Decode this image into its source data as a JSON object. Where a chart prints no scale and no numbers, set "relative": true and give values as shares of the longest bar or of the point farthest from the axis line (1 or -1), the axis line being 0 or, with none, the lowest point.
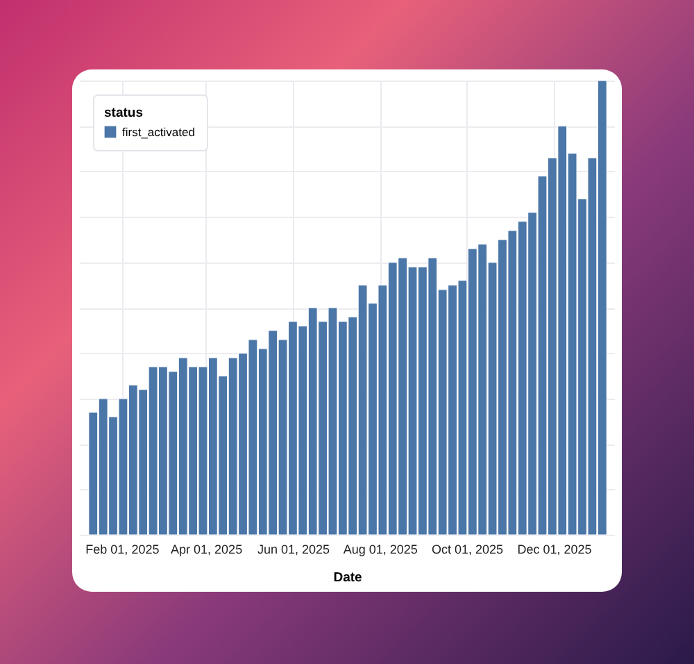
{
  "chart_data": {
    "type": "bar",
    "relative": true,
    "xlabel": "Date",
    "legend_title": "status",
    "legend": "top left",
    "grid": true,
    "x": [
      "2025-01-12",
      "2025-01-19",
      "2025-01-26",
      "2025-02-02",
      "2025-02-09",
      "2025-02-16",
      "2025-02-23",
      "2025-03-02",
      "2025-03-09",
      "2025-03-16",
      "2025-03-23",
      "2025-03-30",
      "2025-04-06",
      "2025-04-13",
      "2025-04-20",
      "2025-04-27",
      "2025-05-04",
      "2025-05-11",
      "2025-05-18",
      "2025-05-25",
      "2025-06-01",
      "2025-06-08",
      "2025-06-15",
      "2025-06-22",
      "2025-06-29",
      "2025-07-06",
      "2025-07-13",
      "2025-07-20",
      "2025-07-27",
      "2025-08-03",
      "2025-08-10",
      "2025-08-17",
      "2025-08-24",
      "2025-08-31",
      "2025-09-07",
      "2025-09-14",
      "2025-09-21",
      "2025-09-28",
      "2025-10-05",
      "2025-10-12",
      "2025-10-19",
      "2025-10-26",
      "2025-11-02",
      "2025-11-09",
      "2025-11-16",
      "2025-11-23",
      "2025-11-30",
      "2025-12-07",
      "2025-12-14",
      "2025-12-21",
      "2025-12-28",
      "2026-01-04"
    ],
    "xlim": [
      "2025-01-07",
      "2026-01-08"
    ],
    "xticks": [
      {
        "value": "2025-02-01",
        "label": "Feb 01, 2025"
      },
      {
        "value": "2025-04-01",
        "label": "Apr 01, 2025"
      },
      {
        "value": "2025-06-01",
        "label": "Jun 01, 2025"
      },
      {
        "value": "2025-08-01",
        "label": "Aug 01, 2025"
      },
      {
        "value": "2025-10-01",
        "label": "Oct 01, 2025"
      },
      {
        "value": "2025-12-01",
        "label": "Dec 01, 2025"
      }
    ],
    "series": [
      {
        "name": "first_activated",
        "color": "#4a76a8",
        "values": [
          0.27,
          0.3,
          0.26,
          0.3,
          0.33,
          0.32,
          0.37,
          0.37,
          0.36,
          0.39,
          0.37,
          0.37,
          0.39,
          0.35,
          0.39,
          0.4,
          0.43,
          0.41,
          0.45,
          0.43,
          0.47,
          0.46,
          0.5,
          0.47,
          0.5,
          0.47,
          0.48,
          0.55,
          0.51,
          0.55,
          0.6,
          0.61,
          0.59,
          0.59,
          0.61,
          0.54,
          0.55,
          0.56,
          0.63,
          0.64,
          0.6,
          0.65,
          0.67,
          0.69,
          0.71,
          0.79,
          0.83,
          0.9,
          0.84,
          0.74,
          0.83,
          1
        ]
      }
    ]
  }
}
